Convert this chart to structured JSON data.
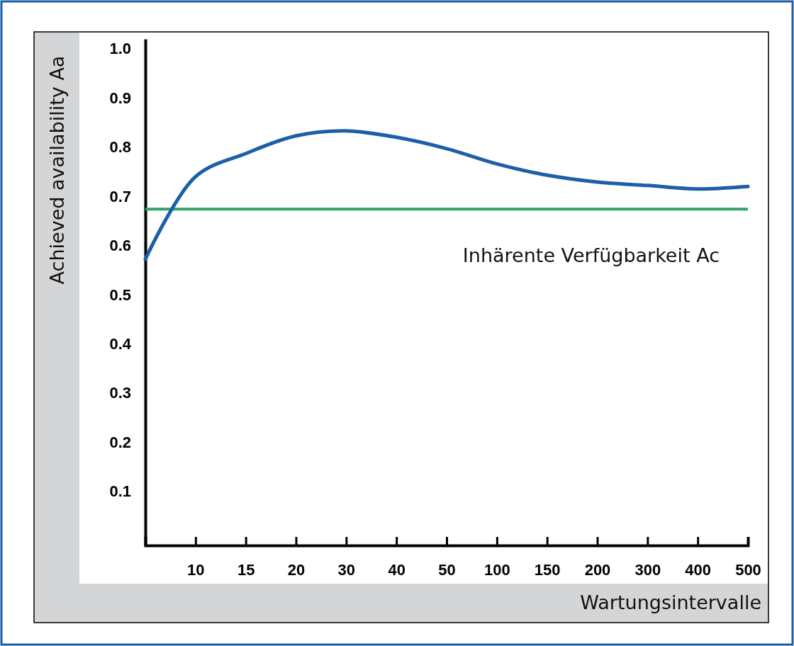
{
  "chart_data": {
    "type": "line",
    "xlabel": "Wartungsintervalle",
    "ylabel": "Achieved availability Aa",
    "categories": [
      null,
      "10",
      "15",
      "20",
      "30",
      "40",
      "50",
      "100",
      "150",
      "200",
      "300",
      "400",
      "500"
    ],
    "series": [
      {
        "color": "#1c5fa8",
        "values": [
          0.572,
          0.74,
          0.787,
          0.823,
          0.833,
          0.82,
          0.797,
          0.766,
          0.743,
          0.729,
          0.722,
          0.715,
          0.72
        ]
      }
    ],
    "ylim": [
      -0.01,
      1.02
    ],
    "yticks": [
      0.1,
      0.2,
      0.3,
      0.4,
      0.5,
      0.6,
      0.7,
      0.8,
      0.9,
      {
        "value": 1.0,
        "label": "1.0"
      }
    ],
    "grid": false,
    "marker": "none",
    "line_style": "solid",
    "ref_lines": [
      {
        "axis": "y",
        "value": 0.674,
        "label": "Inhärente Verfügbarkeit Ac",
        "color": "#2ea36b"
      }
    ]
  }
}
